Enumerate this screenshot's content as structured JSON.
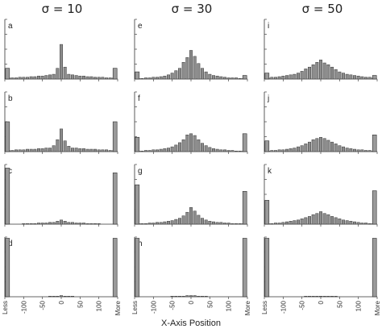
{
  "figure": {
    "xaxis_label": "X-Axis Position"
  },
  "chart_data": {
    "type": "bar",
    "layout": "grid 4 rows x 3 columns of histograms",
    "column_titles": [
      "σ = 10",
      "σ = 30",
      "σ = 50"
    ],
    "panel_letters": [
      [
        "a",
        "e",
        "i"
      ],
      [
        "b",
        "f",
        "j"
      ],
      [
        "c",
        "g",
        "k"
      ],
      [
        "d",
        "h",
        "l"
      ]
    ],
    "xlabel": "X-Axis Position",
    "ylabel": "",
    "x_tick_labels": [
      "Less",
      "-100",
      "-50",
      "0",
      "50",
      "100",
      "More"
    ],
    "x_tick_positions": [
      -150,
      -100,
      -50,
      0,
      50,
      100,
      150
    ],
    "xlim": [
      -150,
      150
    ],
    "bin_width": 10,
    "bin_centers": [
      -140,
      -130,
      -120,
      -110,
      -100,
      -90,
      -80,
      -70,
      -60,
      -50,
      -40,
      -30,
      -20,
      -10,
      0,
      10,
      20,
      30,
      40,
      50,
      60,
      70,
      80,
      90,
      100,
      110,
      120,
      130,
      140
    ],
    "edge_bins": [
      "Less",
      "More"
    ],
    "ylim": [
      0,
      1
    ],
    "colors": {
      "bar": "#8c8c8c",
      "axis": "#333333"
    },
    "panels": [
      {
        "label": "a",
        "sigma": 10,
        "less": 0.18,
        "more": 0.18,
        "values": [
          0.02,
          0.02,
          0.02,
          0.03,
          0.03,
          0.03,
          0.04,
          0.04,
          0.05,
          0.05,
          0.06,
          0.07,
          0.08,
          0.18,
          0.58,
          0.2,
          0.08,
          0.07,
          0.06,
          0.05,
          0.05,
          0.04,
          0.04,
          0.03,
          0.03,
          0.03,
          0.02,
          0.02,
          0.02
        ]
      },
      {
        "label": "b",
        "sigma": 10,
        "less": 0.5,
        "more": 0.5,
        "values": [
          0.02,
          0.02,
          0.03,
          0.03,
          0.03,
          0.04,
          0.04,
          0.04,
          0.05,
          0.05,
          0.06,
          0.06,
          0.1,
          0.2,
          0.38,
          0.18,
          0.09,
          0.06,
          0.06,
          0.05,
          0.05,
          0.04,
          0.04,
          0.04,
          0.03,
          0.03,
          0.03,
          0.02,
          0.02
        ]
      },
      {
        "label": "c",
        "sigma": 10,
        "less": 0.94,
        "more": 0.86,
        "values": [
          0.0,
          0.0,
          0.0,
          0.0,
          0.01,
          0.01,
          0.01,
          0.01,
          0.02,
          0.02,
          0.02,
          0.03,
          0.03,
          0.05,
          0.07,
          0.05,
          0.03,
          0.03,
          0.02,
          0.02,
          0.02,
          0.01,
          0.01,
          0.01,
          0.01,
          0.0,
          0.0,
          0.0,
          0.0
        ]
      },
      {
        "label": "d",
        "sigma": 10,
        "less": 0.98,
        "more": 0.98,
        "values": [
          0.0,
          0.0,
          0.0,
          0.0,
          0.0,
          0.0,
          0.0,
          0.0,
          0.0,
          0.0,
          0.0,
          0.01,
          0.01,
          0.01,
          0.02,
          0.01,
          0.01,
          0.01,
          0.0,
          0.0,
          0.0,
          0.0,
          0.0,
          0.0,
          0.0,
          0.0,
          0.0,
          0.0,
          0.0
        ]
      },
      {
        "label": "e",
        "sigma": 30,
        "less": 0.12,
        "more": 0.06,
        "values": [
          0.01,
          0.01,
          0.02,
          0.02,
          0.03,
          0.03,
          0.04,
          0.05,
          0.07,
          0.1,
          0.14,
          0.18,
          0.28,
          0.36,
          0.48,
          0.38,
          0.26,
          0.18,
          0.12,
          0.08,
          0.06,
          0.05,
          0.04,
          0.03,
          0.02,
          0.02,
          0.02,
          0.01,
          0.01
        ]
      },
      {
        "label": "f",
        "sigma": 30,
        "less": 0.24,
        "more": 0.3,
        "values": [
          0.01,
          0.01,
          0.02,
          0.02,
          0.03,
          0.03,
          0.04,
          0.05,
          0.06,
          0.08,
          0.11,
          0.15,
          0.2,
          0.28,
          0.3,
          0.27,
          0.2,
          0.14,
          0.1,
          0.07,
          0.05,
          0.04,
          0.03,
          0.03,
          0.02,
          0.02,
          0.01,
          0.01,
          0.01
        ]
      },
      {
        "label": "g",
        "sigma": 30,
        "less": 0.66,
        "more": 0.55,
        "values": [
          0.01,
          0.01,
          0.01,
          0.02,
          0.02,
          0.03,
          0.03,
          0.04,
          0.05,
          0.06,
          0.08,
          0.1,
          0.14,
          0.2,
          0.28,
          0.22,
          0.15,
          0.1,
          0.07,
          0.05,
          0.04,
          0.03,
          0.03,
          0.02,
          0.02,
          0.01,
          0.01,
          0.01,
          0.01
        ]
      },
      {
        "label": "h",
        "sigma": 30,
        "less": 0.98,
        "more": 0.98,
        "values": [
          0.0,
          0.0,
          0.0,
          0.0,
          0.0,
          0.0,
          0.0,
          0.0,
          0.0,
          0.01,
          0.01,
          0.01,
          0.01,
          0.02,
          0.02,
          0.02,
          0.01,
          0.01,
          0.01,
          0.0,
          0.0,
          0.0,
          0.0,
          0.0,
          0.0,
          0.0,
          0.0,
          0.0,
          0.0
        ]
      },
      {
        "label": "i",
        "sigma": 50,
        "less": 0.1,
        "more": 0.06,
        "values": [
          0.02,
          0.03,
          0.03,
          0.04,
          0.05,
          0.06,
          0.07,
          0.08,
          0.1,
          0.13,
          0.17,
          0.2,
          0.24,
          0.28,
          0.32,
          0.27,
          0.24,
          0.2,
          0.16,
          0.12,
          0.1,
          0.08,
          0.07,
          0.06,
          0.05,
          0.04,
          0.03,
          0.03,
          0.02
        ]
      },
      {
        "label": "j",
        "sigma": 50,
        "less": 0.18,
        "more": 0.28,
        "values": [
          0.01,
          0.02,
          0.02,
          0.03,
          0.03,
          0.04,
          0.05,
          0.06,
          0.08,
          0.1,
          0.13,
          0.16,
          0.2,
          0.22,
          0.24,
          0.22,
          0.19,
          0.16,
          0.13,
          0.1,
          0.08,
          0.06,
          0.05,
          0.04,
          0.03,
          0.03,
          0.02,
          0.02,
          0.01
        ]
      },
      {
        "label": "k",
        "sigma": 50,
        "less": 0.4,
        "more": 0.56,
        "values": [
          0.01,
          0.01,
          0.02,
          0.02,
          0.03,
          0.04,
          0.05,
          0.06,
          0.07,
          0.09,
          0.11,
          0.13,
          0.16,
          0.18,
          0.21,
          0.18,
          0.16,
          0.13,
          0.11,
          0.09,
          0.07,
          0.06,
          0.05,
          0.04,
          0.03,
          0.02,
          0.02,
          0.01,
          0.01
        ]
      },
      {
        "label": "l",
        "sigma": 50,
        "less": 0.98,
        "more": 0.98,
        "values": [
          0.0,
          0.0,
          0.0,
          0.0,
          0.0,
          0.0,
          0.0,
          0.0,
          0.0,
          0.0,
          0.01,
          0.01,
          0.01,
          0.01,
          0.01,
          0.01,
          0.01,
          0.01,
          0.01,
          0.0,
          0.0,
          0.0,
          0.0,
          0.0,
          0.0,
          0.0,
          0.0,
          0.0,
          0.0
        ]
      }
    ]
  }
}
